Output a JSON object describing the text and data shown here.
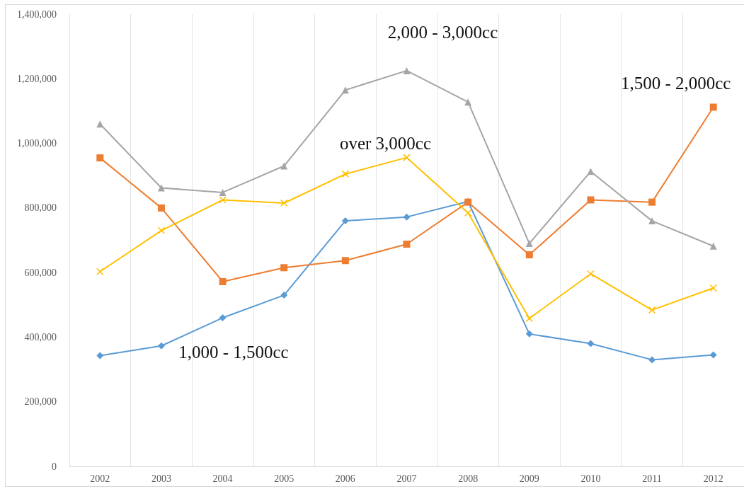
{
  "chart_data": {
    "type": "line",
    "categories": [
      "2002",
      "2003",
      "2004",
      "2005",
      "2006",
      "2007",
      "2008",
      "2009",
      "2010",
      "2011",
      "2012"
    ],
    "series": [
      {
        "name": "1,000 - 1,500cc",
        "color": "#5b9bd5",
        "marker": "diamond",
        "values": [
          343000,
          373000,
          460000,
          530000,
          760000,
          772000,
          820000,
          410000,
          380000,
          330000,
          345000
        ]
      },
      {
        "name": "1,500 - 2,000cc",
        "color": "#ed7d31",
        "marker": "square",
        "values": [
          955000,
          800000,
          572000,
          615000,
          637000,
          688000,
          818000,
          655000,
          825000,
          818000,
          1112000
        ]
      },
      {
        "name": "2,000 - 3,000cc",
        "color": "#a5a5a5",
        "marker": "triangle",
        "values": [
          1060000,
          862000,
          848000,
          930000,
          1165000,
          1225000,
          1128000,
          690000,
          913000,
          760000,
          682000
        ]
      },
      {
        "name": "over 3,000cc",
        "color": "#ffc000",
        "marker": "cross",
        "values": [
          603000,
          730000,
          825000,
          815000,
          905000,
          956000,
          785000,
          458000,
          596000,
          484000,
          552000
        ]
      }
    ],
    "ylim": [
      0,
      1400000
    ],
    "yticks": [
      0,
      {
        "value": 200000,
        "label": "200,000"
      },
      {
        "value": 400000,
        "label": "400,000"
      },
      {
        "value": 600000,
        "label": "600,000"
      },
      {
        "value": 800000,
        "label": "800,000"
      },
      {
        "value": 1000000,
        "label": "1,000,000"
      },
      {
        "value": 1200000,
        "label": "1,200,000"
      },
      {
        "value": 1400000,
        "label": "1,400,000"
      }
    ],
    "grid": "x",
    "legend": false
  }
}
